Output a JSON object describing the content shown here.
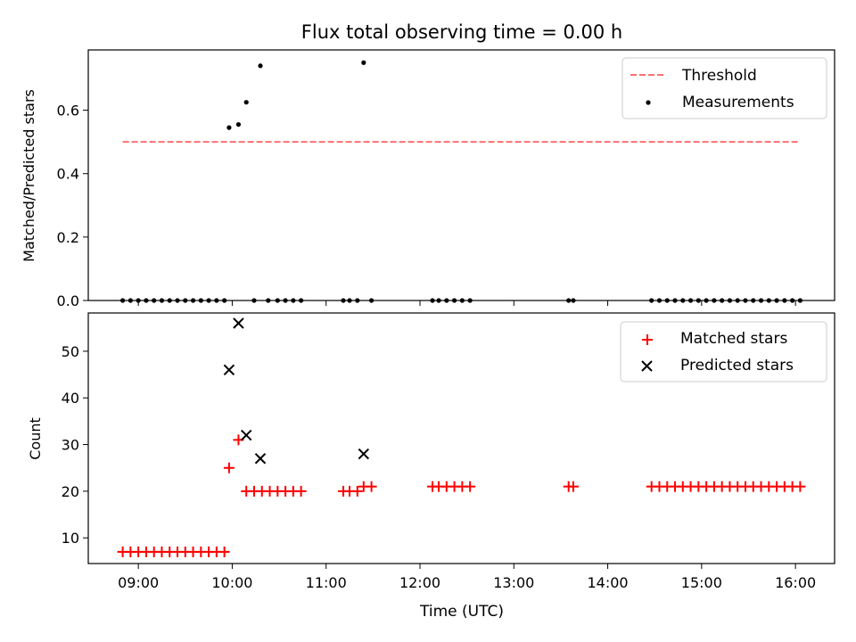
{
  "figure": {
    "title": "Flux total observing time = 0.00 h",
    "xlabel": "Time (UTC)"
  },
  "chart_data": [
    {
      "type": "scatter",
      "ylabel": "Matched/Predicted stars",
      "xlim": [
        "08:28",
        "16:25"
      ],
      "ylim": [
        0,
        0.79
      ],
      "yticks": [
        "0.0",
        "0.2",
        "0.4",
        "0.6"
      ],
      "ytick_values": [
        0,
        0.2,
        0.4,
        0.6
      ],
      "legend_position": "top-right",
      "threshold": {
        "name": "Threshold",
        "value": 0.5,
        "x_range": [
          "08:50",
          "16:02"
        ],
        "color": "#ff7070",
        "style": "dashed"
      },
      "series": [
        {
          "name": "Measurements",
          "color": "#000000",
          "marker": "dot",
          "points": [
            [
              "08:50",
              0
            ],
            [
              "08:55",
              0
            ],
            [
              "09:00",
              0
            ],
            [
              "09:05",
              0
            ],
            [
              "09:10",
              0
            ],
            [
              "09:15",
              0
            ],
            [
              "09:20",
              0
            ],
            [
              "09:25",
              0
            ],
            [
              "09:30",
              0
            ],
            [
              "09:35",
              0
            ],
            [
              "09:40",
              0
            ],
            [
              "09:45",
              0
            ],
            [
              "09:50",
              0
            ],
            [
              "09:55",
              0
            ],
            [
              "09:58",
              0.545
            ],
            [
              "10:04",
              0.555
            ],
            [
              "10:09",
              0.625
            ],
            [
              "10:18",
              0.74
            ],
            [
              "10:14",
              0
            ],
            [
              "10:23",
              0
            ],
            [
              "10:29",
              0
            ],
            [
              "10:34",
              0
            ],
            [
              "10:39",
              0
            ],
            [
              "10:44",
              0
            ],
            [
              "11:11",
              0
            ],
            [
              "11:15",
              0
            ],
            [
              "11:20",
              0
            ],
            [
              "11:24",
              0.75
            ],
            [
              "11:29",
              0
            ],
            [
              "12:08",
              0
            ],
            [
              "12:12",
              0
            ],
            [
              "12:17",
              0
            ],
            [
              "12:22",
              0
            ],
            [
              "12:27",
              0
            ],
            [
              "12:32",
              0
            ],
            [
              "13:35",
              0
            ],
            [
              "13:38",
              0
            ],
            [
              "14:28",
              0
            ],
            [
              "14:33",
              0
            ],
            [
              "14:38",
              0
            ],
            [
              "14:43",
              0
            ],
            [
              "14:48",
              0
            ],
            [
              "14:53",
              0
            ],
            [
              "14:58",
              0
            ],
            [
              "15:03",
              0
            ],
            [
              "15:08",
              0
            ],
            [
              "15:13",
              0
            ],
            [
              "15:18",
              0
            ],
            [
              "15:23",
              0
            ],
            [
              "15:28",
              0
            ],
            [
              "15:33",
              0
            ],
            [
              "15:38",
              0
            ],
            [
              "15:43",
              0
            ],
            [
              "15:48",
              0
            ],
            [
              "15:53",
              0
            ],
            [
              "15:58",
              0
            ],
            [
              "16:03",
              0
            ]
          ]
        }
      ]
    },
    {
      "type": "scatter",
      "ylabel": "Count",
      "xlim": [
        "08:28",
        "16:25"
      ],
      "ylim": [
        4.5,
        58.2
      ],
      "yticks": [
        "10",
        "20",
        "30",
        "40",
        "50"
      ],
      "ytick_values": [
        10,
        20,
        30,
        40,
        50
      ],
      "xticks": [
        "09:00",
        "10:00",
        "11:00",
        "12:00",
        "13:00",
        "14:00",
        "15:00",
        "16:00"
      ],
      "legend_position": "top-right",
      "series": [
        {
          "name": "Matched stars",
          "color": "#ff0000",
          "marker": "plus",
          "points": [
            [
              "08:50",
              7
            ],
            [
              "08:55",
              7
            ],
            [
              "09:00",
              7
            ],
            [
              "09:05",
              7
            ],
            [
              "09:10",
              7
            ],
            [
              "09:15",
              7
            ],
            [
              "09:20",
              7
            ],
            [
              "09:25",
              7
            ],
            [
              "09:30",
              7
            ],
            [
              "09:35",
              7
            ],
            [
              "09:40",
              7
            ],
            [
              "09:45",
              7
            ],
            [
              "09:50",
              7
            ],
            [
              "09:55",
              7
            ],
            [
              "09:58",
              25
            ],
            [
              "10:04",
              31
            ],
            [
              "10:09",
              20
            ],
            [
              "10:14",
              20
            ],
            [
              "10:19",
              20
            ],
            [
              "10:24",
              20
            ],
            [
              "10:29",
              20
            ],
            [
              "10:34",
              20
            ],
            [
              "10:39",
              20
            ],
            [
              "10:44",
              20
            ],
            [
              "11:11",
              20
            ],
            [
              "11:15",
              20
            ],
            [
              "11:20",
              20
            ],
            [
              "11:24",
              21
            ],
            [
              "11:29",
              21
            ],
            [
              "12:08",
              21
            ],
            [
              "12:12",
              21
            ],
            [
              "12:17",
              21
            ],
            [
              "12:22",
              21
            ],
            [
              "12:27",
              21
            ],
            [
              "12:32",
              21
            ],
            [
              "13:35",
              21
            ],
            [
              "13:38",
              21
            ],
            [
              "14:28",
              21
            ],
            [
              "14:33",
              21
            ],
            [
              "14:38",
              21
            ],
            [
              "14:43",
              21
            ],
            [
              "14:48",
              21
            ],
            [
              "14:53",
              21
            ],
            [
              "14:58",
              21
            ],
            [
              "15:03",
              21
            ],
            [
              "15:08",
              21
            ],
            [
              "15:13",
              21
            ],
            [
              "15:18",
              21
            ],
            [
              "15:23",
              21
            ],
            [
              "15:28",
              21
            ],
            [
              "15:33",
              21
            ],
            [
              "15:38",
              21
            ],
            [
              "15:43",
              21
            ],
            [
              "15:48",
              21
            ],
            [
              "15:53",
              21
            ],
            [
              "15:58",
              21
            ],
            [
              "16:03",
              21
            ]
          ]
        },
        {
          "name": "Predicted stars",
          "color": "#000000",
          "marker": "x",
          "points": [
            [
              "09:58",
              46
            ],
            [
              "10:04",
              56
            ],
            [
              "10:09",
              32
            ],
            [
              "10:18",
              27
            ],
            [
              "11:24",
              28
            ]
          ]
        }
      ]
    }
  ]
}
